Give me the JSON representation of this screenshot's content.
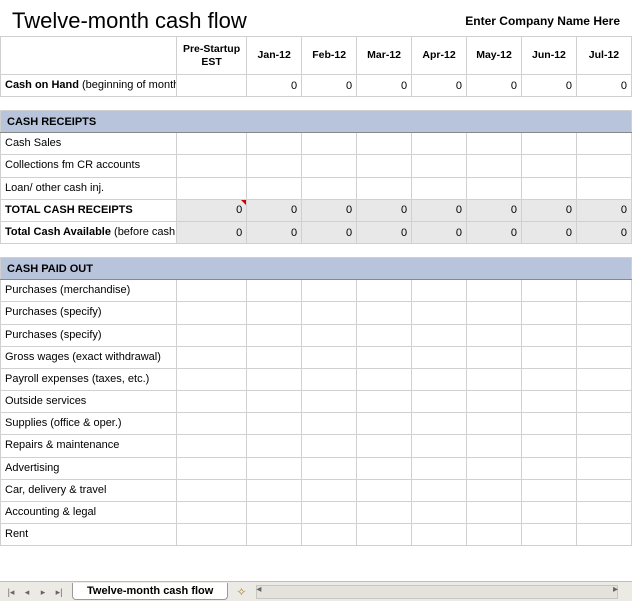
{
  "header": {
    "title": "Twelve-month cash flow",
    "company_placeholder": "Enter Company Name Here"
  },
  "columns": {
    "rowhead": "",
    "pre": "Pre-Startup EST",
    "months": [
      "Jan-12",
      "Feb-12",
      "Mar-12",
      "Apr-12",
      "May-12",
      "Jun-12",
      "Jul-12"
    ]
  },
  "cash_on_hand": {
    "label_bold": "Cash on Hand",
    "label_sub": " (beginning of month)",
    "values": [
      "",
      "0",
      "0",
      "0",
      "0",
      "0",
      "0",
      "0"
    ]
  },
  "sections": {
    "receipts": {
      "title": "CASH RECEIPTS",
      "rows": [
        {
          "label": "Cash Sales",
          "values": [
            "",
            "",
            "",
            "",
            "",
            "",
            "",
            ""
          ]
        },
        {
          "label": "Collections fm CR accounts",
          "values": [
            "",
            "",
            "",
            "",
            "",
            "",
            "",
            ""
          ]
        },
        {
          "label": "Loan/ other cash inj.",
          "values": [
            "",
            "",
            "",
            "",
            "",
            "",
            "",
            ""
          ]
        }
      ],
      "total": {
        "label": "TOTAL CASH RECEIPTS",
        "values": [
          "0",
          "0",
          "0",
          "0",
          "0",
          "0",
          "0",
          "0"
        ]
      },
      "available": {
        "label_bold": "Total Cash Available",
        "label_sub": " (before cash out)",
        "values": [
          "0",
          "0",
          "0",
          "0",
          "0",
          "0",
          "0",
          "0"
        ]
      }
    },
    "paidout": {
      "title": "CASH PAID OUT",
      "rows": [
        {
          "label": "Purchases (merchandise)",
          "values": [
            "",
            "",
            "",
            "",
            "",
            "",
            "",
            ""
          ]
        },
        {
          "label": "Purchases (specify)",
          "values": [
            "",
            "",
            "",
            "",
            "",
            "",
            "",
            ""
          ]
        },
        {
          "label": "Purchases (specify)",
          "values": [
            "",
            "",
            "",
            "",
            "",
            "",
            "",
            ""
          ]
        },
        {
          "label": "Gross wages (exact withdrawal)",
          "values": [
            "",
            "",
            "",
            "",
            "",
            "",
            "",
            ""
          ]
        },
        {
          "label": "Payroll expenses (taxes, etc.)",
          "values": [
            "",
            "",
            "",
            "",
            "",
            "",
            "",
            ""
          ]
        },
        {
          "label": "Outside services",
          "values": [
            "",
            "",
            "",
            "",
            "",
            "",
            "",
            ""
          ]
        },
        {
          "label": "Supplies (office & oper.)",
          "values": [
            "",
            "",
            "",
            "",
            "",
            "",
            "",
            ""
          ]
        },
        {
          "label": "Repairs & maintenance",
          "values": [
            "",
            "",
            "",
            "",
            "",
            "",
            "",
            ""
          ]
        },
        {
          "label": "Advertising",
          "values": [
            "",
            "",
            "",
            "",
            "",
            "",
            "",
            ""
          ]
        },
        {
          "label": "Car, delivery & travel",
          "values": [
            "",
            "",
            "",
            "",
            "",
            "",
            "",
            ""
          ]
        },
        {
          "label": "Accounting & legal",
          "values": [
            "",
            "",
            "",
            "",
            "",
            "",
            "",
            ""
          ]
        },
        {
          "label": "Rent",
          "values": [
            "",
            "",
            "",
            "",
            "",
            "",
            "",
            ""
          ]
        }
      ]
    }
  },
  "tabbar": {
    "active_tab": "Twelve-month cash flow"
  },
  "style": {
    "section_bg": "#b8c4dc",
    "total_bg": "#e8e8e8",
    "border": "#d0d0d0",
    "title_fontsize": 22,
    "cell_fontsize": 11
  }
}
